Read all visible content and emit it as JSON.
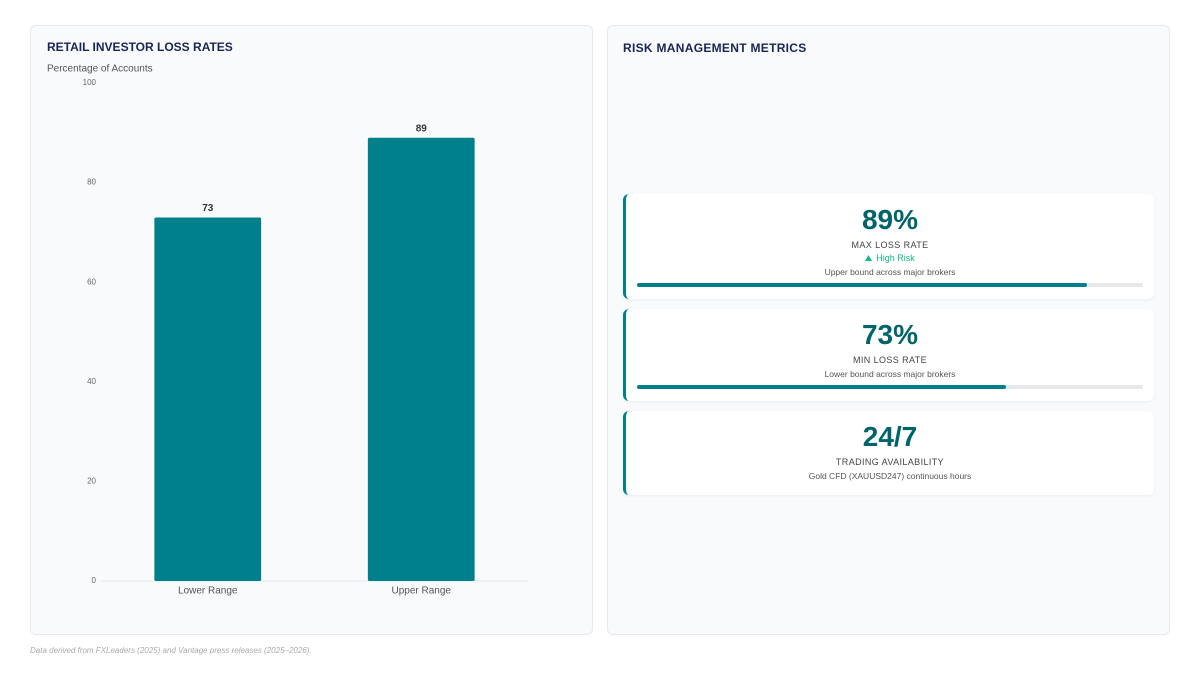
{
  "chart_data": {
    "type": "bar",
    "title": "RETAIL INVESTOR LOSS RATES",
    "y_label": "Percentage of Accounts",
    "categories": [
      "Lower Range",
      "Upper Range"
    ],
    "values": [
      73,
      89
    ],
    "color": "#00808a",
    "ylim": [
      0,
      100
    ],
    "yticks": [
      0,
      20,
      40,
      60,
      80,
      100
    ]
  },
  "metrics_panel": {
    "title": "RISK MANAGEMENT METRICS",
    "cards": [
      {
        "value": 89,
        "value_label": "89%",
        "label": "MAX LOSS RATE",
        "badge": "High Risk",
        "note": "Upper bound across major brokers"
      },
      {
        "value": 73,
        "value_label": "73%",
        "label": "MIN LOSS RATE",
        "note": "Lower bound across major brokers"
      },
      {
        "value_label": "24/7",
        "label": "TRADING AVAILABILITY",
        "note": "Gold CFD (XAUUSD247) continuous hours"
      }
    ]
  },
  "footer": "Data derived from FXLeaders (2025) and Vantage press releases (2025–2026)."
}
